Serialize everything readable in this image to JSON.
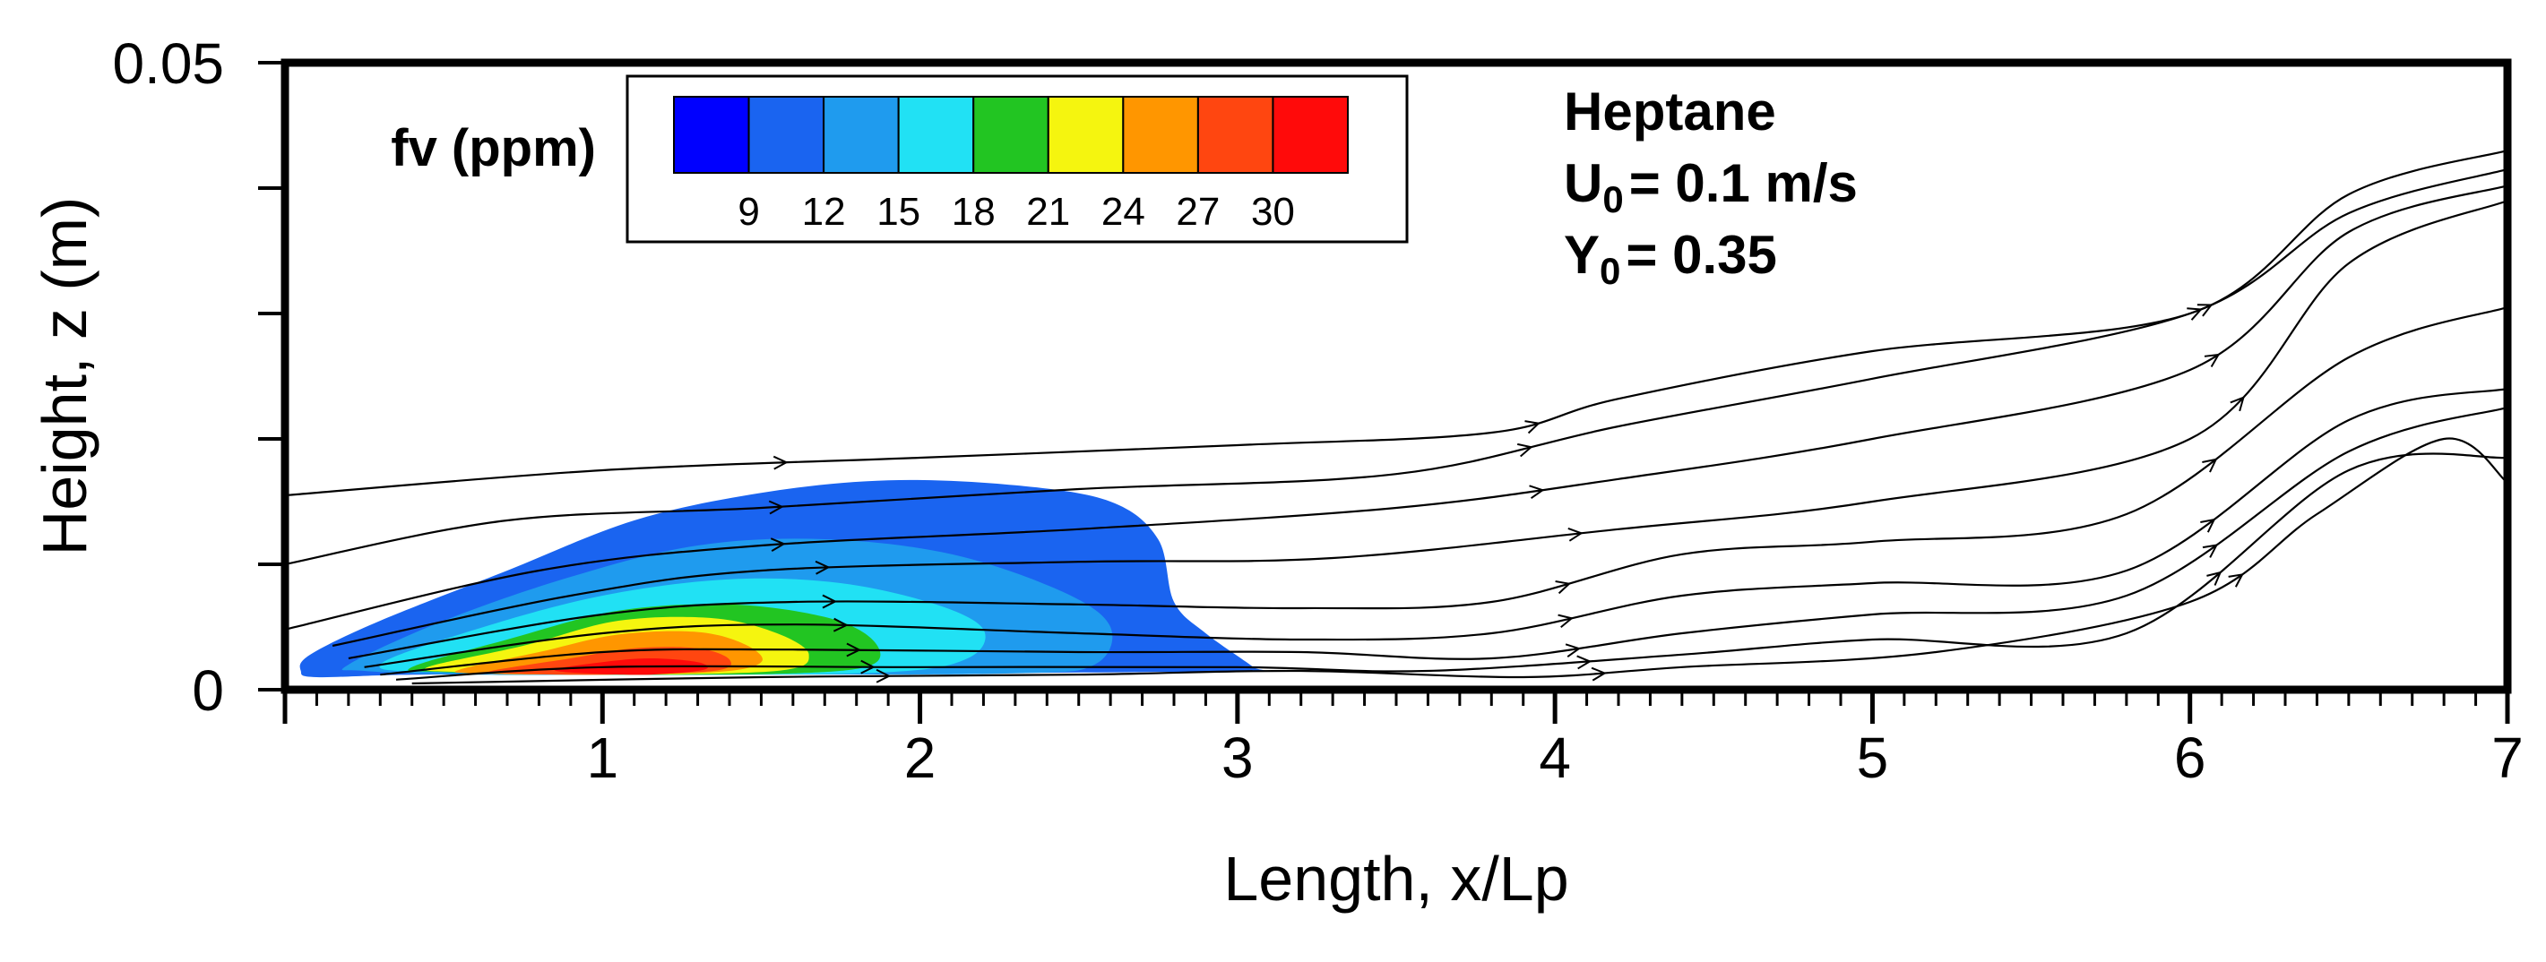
{
  "chart_data": {
    "type": "contour",
    "xlabel": "Length, x/Lp",
    "ylabel": "Height, z (m)",
    "xlim": [
      0,
      7
    ],
    "ylim": [
      0,
      0.05
    ],
    "x_ticks": [
      "1",
      "2",
      "3",
      "4",
      "5",
      "6",
      "7"
    ],
    "y_ticks": [
      "0",
      "0.05"
    ],
    "legend": {
      "title": "fv (ppm)",
      "placement": "top-left",
      "levels": [
        "9",
        "12",
        "15",
        "18",
        "21",
        "24",
        "27",
        "30"
      ],
      "colors": [
        "#0000ff",
        "#1a64f0",
        "#1f9bee",
        "#21e1f4",
        "#22c522",
        "#f5f50f",
        "#ff9600",
        "#ff4610",
        "#ff0a0a"
      ]
    },
    "annotation": {
      "fuel": "Heptane",
      "u_symbol": "U",
      "u_sub": "0",
      "u_value": "= 0.1 m/s",
      "y_symbol": "Y",
      "y_sub": "0",
      "y_value": "= 0.35"
    },
    "contours": [
      {
        "level": 9,
        "points": [
          [
            0.05,
            0.0015
          ],
          [
            0.08,
            0.0028
          ],
          [
            0.3,
            0.0055
          ],
          [
            0.7,
            0.0095
          ],
          [
            1.1,
            0.0135
          ],
          [
            1.5,
            0.0157
          ],
          [
            1.9,
            0.0167
          ],
          [
            2.3,
            0.0163
          ],
          [
            2.6,
            0.015
          ],
          [
            2.75,
            0.012
          ],
          [
            2.8,
            0.007
          ],
          [
            2.9,
            0.0045
          ],
          [
            3.05,
            0.0018
          ],
          [
            3.05,
            0.0015
          ],
          [
            2.0,
            0.0013
          ],
          [
            1.0,
            0.0012
          ],
          [
            0.4,
            0.0012
          ],
          [
            0.1,
            0.001
          ]
        ]
      },
      {
        "level": 12,
        "points": [
          [
            0.2,
            0.002
          ],
          [
            0.5,
            0.0055
          ],
          [
            0.9,
            0.009
          ],
          [
            1.3,
            0.0115
          ],
          [
            1.7,
            0.012
          ],
          [
            2.1,
            0.0108
          ],
          [
            2.45,
            0.0078
          ],
          [
            2.6,
            0.005
          ],
          [
            2.55,
            0.002
          ],
          [
            2.3,
            0.0013
          ],
          [
            1.4,
            0.0012
          ],
          [
            0.6,
            0.0012
          ],
          [
            0.25,
            0.0015
          ]
        ]
      },
      {
        "level": 15,
        "points": [
          [
            0.3,
            0.002
          ],
          [
            0.6,
            0.0048
          ],
          [
            1.0,
            0.0075
          ],
          [
            1.4,
            0.0088
          ],
          [
            1.75,
            0.0085
          ],
          [
            2.05,
            0.0068
          ],
          [
            2.2,
            0.0048
          ],
          [
            2.15,
            0.0025
          ],
          [
            1.9,
            0.0014
          ],
          [
            1.2,
            0.0012
          ],
          [
            0.5,
            0.0014
          ]
        ]
      },
      {
        "level": 18,
        "points": [
          [
            0.4,
            0.0018
          ],
          [
            0.7,
            0.004
          ],
          [
            1.05,
            0.0063
          ],
          [
            1.4,
            0.0068
          ],
          [
            1.7,
            0.0058
          ],
          [
            1.85,
            0.004
          ],
          [
            1.85,
            0.002
          ],
          [
            1.6,
            0.0013
          ],
          [
            1.0,
            0.0012
          ],
          [
            0.5,
            0.0014
          ]
        ]
      },
      {
        "level": 21,
        "points": [
          [
            0.45,
            0.0018
          ],
          [
            0.75,
            0.0035
          ],
          [
            1.05,
            0.0055
          ],
          [
            1.35,
            0.0057
          ],
          [
            1.55,
            0.0045
          ],
          [
            1.65,
            0.0028
          ],
          [
            1.55,
            0.0015
          ],
          [
            1.0,
            0.0012
          ],
          [
            0.55,
            0.0014
          ]
        ]
      },
      {
        "level": 24,
        "points": [
          [
            0.55,
            0.0016
          ],
          [
            0.8,
            0.003
          ],
          [
            1.05,
            0.0044
          ],
          [
            1.3,
            0.0046
          ],
          [
            1.45,
            0.0036
          ],
          [
            1.5,
            0.0022
          ],
          [
            1.35,
            0.0014
          ],
          [
            0.9,
            0.0012
          ],
          [
            0.6,
            0.0013
          ]
        ]
      },
      {
        "level": 27,
        "points": [
          [
            0.65,
            0.0015
          ],
          [
            0.9,
            0.0025
          ],
          [
            1.1,
            0.0033
          ],
          [
            1.3,
            0.0033
          ],
          [
            1.4,
            0.0024
          ],
          [
            1.35,
            0.0015
          ],
          [
            1.0,
            0.0012
          ],
          [
            0.7,
            0.0013
          ]
        ]
      },
      {
        "level": 30,
        "points": [
          [
            0.85,
            0.0016
          ],
          [
            1.0,
            0.0022
          ],
          [
            1.15,
            0.0025
          ],
          [
            1.3,
            0.0022
          ],
          [
            1.32,
            0.0016
          ],
          [
            1.15,
            0.0012
          ],
          [
            0.95,
            0.0013
          ]
        ]
      }
    ],
    "streamlines": [
      [
        [
          0.0,
          0.0155
        ],
        [
          1.0,
          0.0175
        ],
        [
          2.0,
          0.0185
        ],
        [
          3.0,
          0.0195
        ],
        [
          3.8,
          0.0205
        ],
        [
          4.2,
          0.0232
        ],
        [
          5.0,
          0.027
        ],
        [
          6.0,
          0.03
        ],
        [
          6.5,
          0.0395
        ],
        [
          7.0,
          0.043
        ]
      ],
      [
        [
          0.0,
          0.01
        ],
        [
          0.7,
          0.0135
        ],
        [
          1.5,
          0.0145
        ],
        [
          2.5,
          0.016
        ],
        [
          3.5,
          0.0172
        ],
        [
          4.2,
          0.021
        ],
        [
          5.0,
          0.0248
        ],
        [
          6.0,
          0.03
        ],
        [
          6.5,
          0.038
        ],
        [
          7.0,
          0.0415
        ]
      ],
      [
        [
          0.0,
          0.0048
        ],
        [
          0.8,
          0.0095
        ],
        [
          1.5,
          0.0115
        ],
        [
          2.5,
          0.0128
        ],
        [
          3.5,
          0.0145
        ],
        [
          4.2,
          0.0168
        ],
        [
          5.0,
          0.02
        ],
        [
          6.0,
          0.0255
        ],
        [
          6.5,
          0.0365
        ],
        [
          7.0,
          0.0402
        ]
      ],
      [
        [
          0.15,
          0.0035
        ],
        [
          0.9,
          0.0075
        ],
        [
          1.5,
          0.0095
        ],
        [
          2.5,
          0.0102
        ],
        [
          3.3,
          0.0105
        ],
        [
          4.2,
          0.0128
        ],
        [
          5.0,
          0.015
        ],
        [
          6.0,
          0.02
        ],
        [
          6.5,
          0.034
        ],
        [
          7.0,
          0.039
        ]
      ],
      [
        [
          0.2,
          0.0025
        ],
        [
          1.0,
          0.006
        ],
        [
          1.6,
          0.007
        ],
        [
          2.5,
          0.0068
        ],
        [
          3.2,
          0.0065
        ],
        [
          3.8,
          0.007
        ],
        [
          4.4,
          0.0108
        ],
        [
          5.0,
          0.0118
        ],
        [
          5.8,
          0.014
        ],
        [
          6.5,
          0.0265
        ],
        [
          7.0,
          0.0305
        ]
      ],
      [
        [
          0.25,
          0.0018
        ],
        [
          1.0,
          0.0045
        ],
        [
          1.6,
          0.0052
        ],
        [
          2.5,
          0.0045
        ],
        [
          3.2,
          0.004
        ],
        [
          3.8,
          0.0045
        ],
        [
          4.4,
          0.0075
        ],
        [
          5.0,
          0.0085
        ],
        [
          5.8,
          0.0095
        ],
        [
          6.5,
          0.0215
        ],
        [
          7.0,
          0.024
        ]
      ],
      [
        [
          0.3,
          0.0012
        ],
        [
          1.0,
          0.003
        ],
        [
          1.6,
          0.0032
        ],
        [
          2.5,
          0.003
        ],
        [
          3.2,
          0.003
        ],
        [
          3.8,
          0.0025
        ],
        [
          4.4,
          0.0045
        ],
        [
          5.0,
          0.006
        ],
        [
          5.8,
          0.0075
        ],
        [
          6.5,
          0.019
        ],
        [
          7.0,
          0.0225
        ]
      ],
      [
        [
          0.35,
          0.0008
        ],
        [
          1.0,
          0.0018
        ],
        [
          2.0,
          0.0018
        ],
        [
          3.0,
          0.0018
        ],
        [
          3.6,
          0.0015
        ],
        [
          4.4,
          0.0028
        ],
        [
          5.0,
          0.004
        ],
        [
          5.8,
          0.0045
        ],
        [
          6.5,
          0.0175
        ],
        [
          7.0,
          0.0185
        ]
      ],
      [
        [
          0.4,
          0.0005
        ],
        [
          1.5,
          0.001
        ],
        [
          2.5,
          0.0012
        ],
        [
          3.2,
          0.0015
        ],
        [
          3.9,
          0.001
        ],
        [
          4.4,
          0.0018
        ],
        [
          5.2,
          0.003
        ],
        [
          6.0,
          0.007
        ],
        [
          6.4,
          0.014
        ],
        [
          6.8,
          0.02
        ],
        [
          7.0,
          0.0165
        ]
      ]
    ]
  }
}
